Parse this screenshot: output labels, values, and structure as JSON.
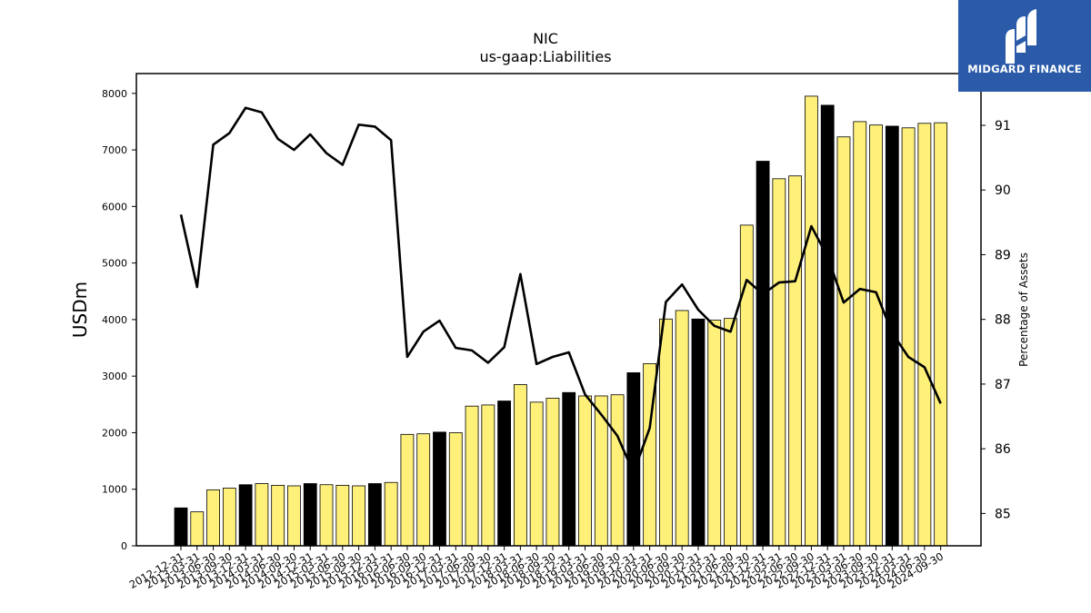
{
  "chart_data": {
    "type": "bar",
    "title": "NIC",
    "subtitle": "us-gaap:Liabilities",
    "ylabel": "USDm",
    "y2label": "Percentage of Assets",
    "ylim": [
      0,
      8350
    ],
    "y2lim": [
      84.5,
      91.8
    ],
    "yticks": [
      0,
      1000,
      2000,
      3000,
      4000,
      5000,
      6000,
      7000,
      8000
    ],
    "y2ticks": [
      85,
      86,
      87,
      88,
      89,
      90,
      91
    ],
    "grid": false,
    "colors": {
      "annual_bar": "#000000",
      "quarter_bar": "#fff07a",
      "line": "#000000"
    },
    "categories": [
      "2012-12-31",
      "2013-03-31",
      "2013-06-30",
      "2013-09-30",
      "2013-12-31",
      "2014-03-31",
      "2014-06-30",
      "2014-09-30",
      "2014-12-31",
      "2015-03-31",
      "2015-06-30",
      "2015-09-30",
      "2015-12-31",
      "2016-03-31",
      "2016-06-30",
      "2016-09-30",
      "2016-12-31",
      "2017-03-31",
      "2017-06-30",
      "2017-09-30",
      "2017-12-31",
      "2018-03-31",
      "2018-06-30",
      "2018-09-30",
      "2018-12-31",
      "2019-03-31",
      "2019-06-30",
      "2019-09-30",
      "2019-12-31",
      "2020-03-31",
      "2020-06-30",
      "2020-09-30",
      "2020-12-31",
      "2021-03-31",
      "2021-06-30",
      "2021-09-30",
      "2021-12-31",
      "2022-03-31",
      "2022-06-30",
      "2022-09-30",
      "2022-12-31",
      "2023-03-31",
      "2023-06-30",
      "2023-09-30",
      "2023-12-31",
      "2024-03-31",
      "2024-06-30",
      "2024-09-30"
    ],
    "series": [
      {
        "kind": "bar",
        "values": [
          670,
          600,
          990,
          1020,
          1080,
          1100,
          1070,
          1060,
          1100,
          1080,
          1070,
          1060,
          1100,
          1120,
          1970,
          1980,
          2010,
          2000,
          2470,
          2490,
          2560,
          2850,
          2540,
          2610,
          2710,
          2650,
          2650,
          2670,
          3060,
          3220,
          4010,
          4160,
          4010,
          3990,
          4020,
          5670,
          6800,
          6490,
          6540,
          7950,
          7790,
          7230,
          7500,
          7440,
          7420,
          7390,
          7470,
          7480
        ],
        "annual": [
          true,
          false,
          false,
          false,
          true,
          false,
          false,
          false,
          true,
          false,
          false,
          false,
          true,
          false,
          false,
          false,
          true,
          false,
          false,
          false,
          true,
          false,
          false,
          false,
          true,
          false,
          false,
          false,
          true,
          false,
          false,
          false,
          true,
          false,
          false,
          false,
          true,
          false,
          false,
          false,
          true,
          false,
          false,
          false,
          true,
          false,
          false,
          false
        ]
      },
      {
        "kind": "line",
        "axis": "right",
        "values": [
          89.62,
          88.5,
          90.7,
          90.88,
          91.27,
          91.2,
          90.79,
          90.62,
          90.86,
          90.57,
          90.39,
          91.01,
          90.98,
          90.77,
          87.42,
          87.81,
          87.98,
          87.56,
          87.52,
          87.33,
          87.57,
          88.7,
          87.31,
          87.42,
          87.49,
          86.84,
          86.53,
          86.2,
          85.63,
          86.32,
          88.27,
          88.54,
          88.15,
          87.9,
          87.81,
          88.61,
          88.39,
          88.57,
          88.59,
          89.44,
          88.97,
          88.26,
          88.47,
          88.42,
          87.79,
          87.42,
          87.26,
          86.7
        ]
      }
    ]
  },
  "logo": {
    "text": "MIDGARD FINANCE",
    "icon": "midgard-logo-icon"
  }
}
